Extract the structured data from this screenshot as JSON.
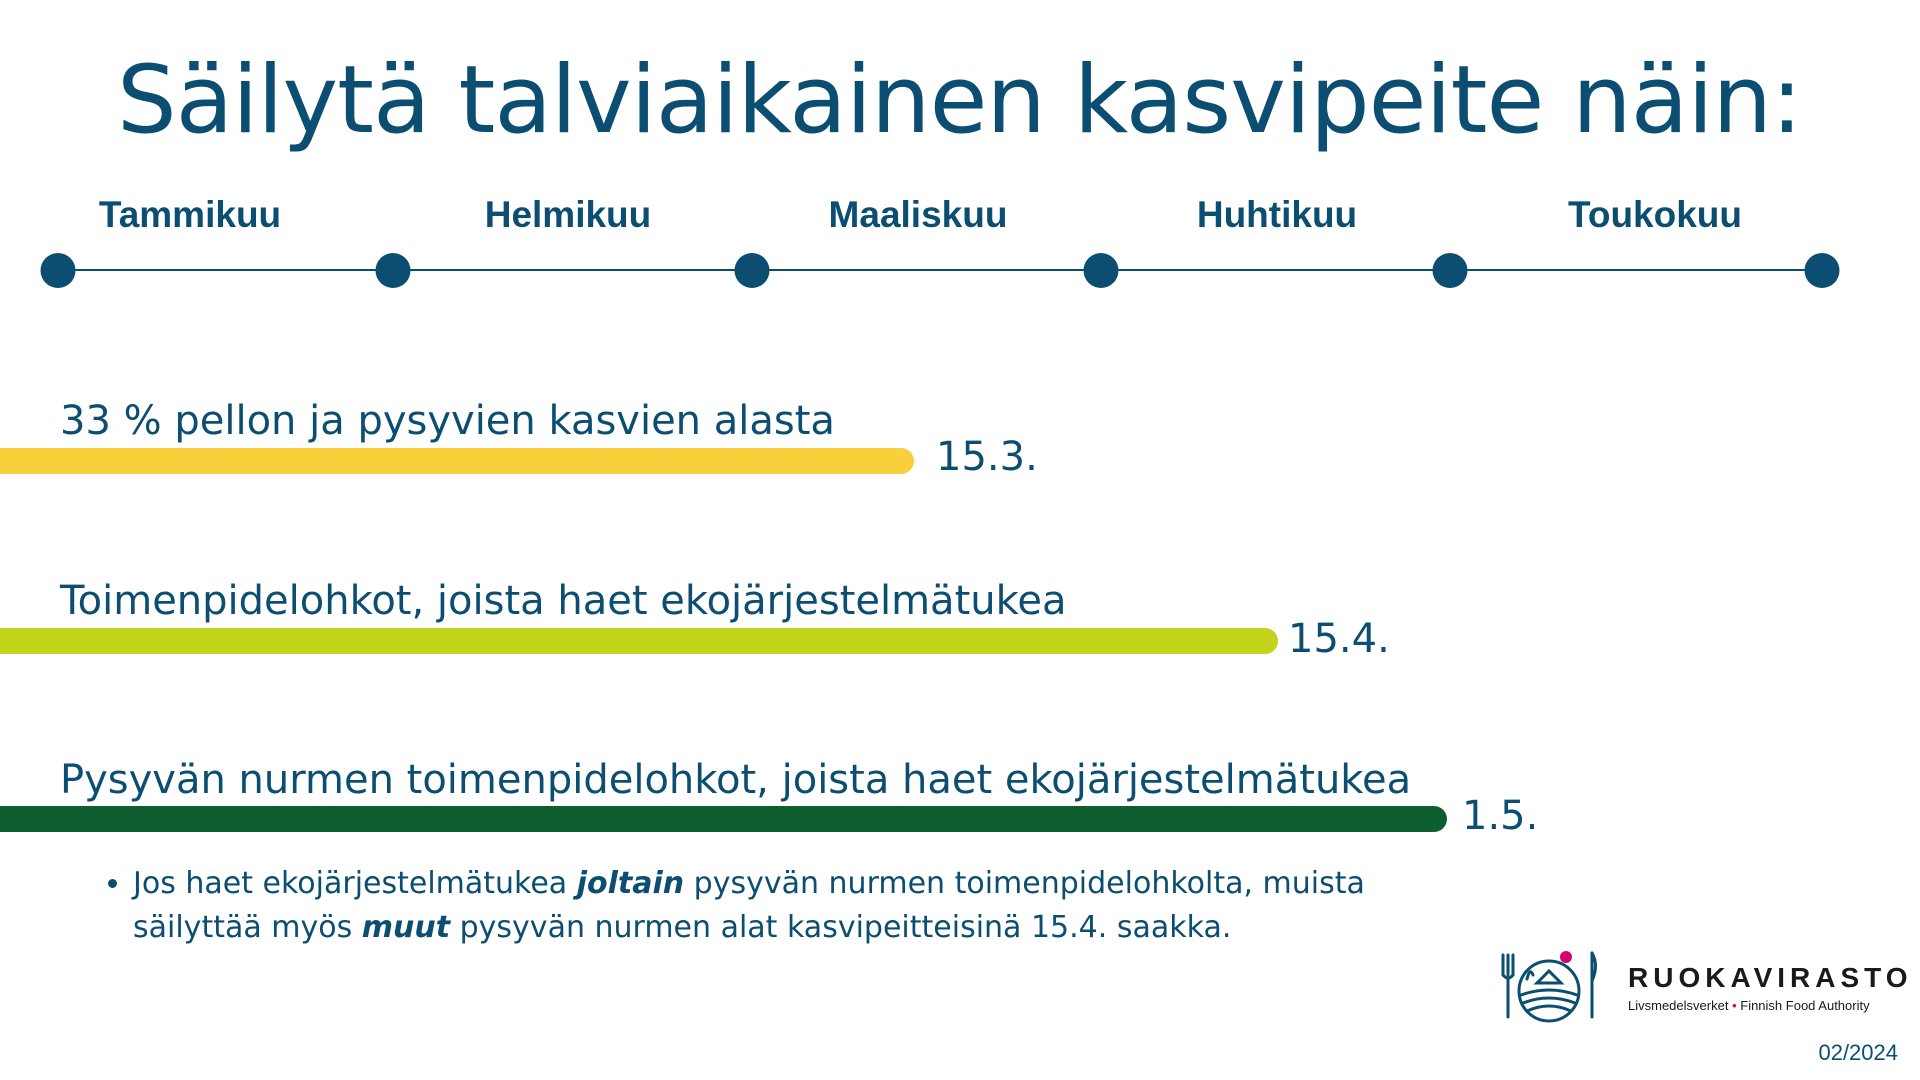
{
  "title": "Säilytä talviaikainen kasvipeite näin:",
  "timeline": {
    "months": [
      "Tammikuu",
      "Helmikuu",
      "Maaliskuu",
      "Huhtikuu",
      "Toukokuu"
    ]
  },
  "rows": [
    {
      "label": "33 % pellon ja pysyvien kasvien alasta",
      "end_date": "15.3.",
      "color": "#f7d03c"
    },
    {
      "label": "Toimenpidelohkot, joista haet ekojärjestelmätukea",
      "end_date": "15.4.",
      "color": "#c3d41c"
    },
    {
      "label": "Pysyvän nurmen toimenpidelohkot, joista haet ekojärjestelmätukea",
      "end_date": "1.5.",
      "color": "#0f5e30"
    }
  ],
  "note": {
    "part1": "Jos haet ekojärjestelmätukea ",
    "em1": "joltain",
    "part2": " pysyvän nurmen toimenpidelohkolta, muista säilyttää myös ",
    "em2": "muut",
    "part3": " pysyvän nurmen alat kasvipeitteisinä 15.4. saakka."
  },
  "logo": {
    "brand": "RUOKAVIRASTO",
    "sub_left": "Livsmedelsverket",
    "sub_sep": "•",
    "sub_right": "Finnish Food Authority",
    "icon": "fork-field-knife-icon",
    "accent": "#d6006f"
  },
  "date": "02/2024"
}
